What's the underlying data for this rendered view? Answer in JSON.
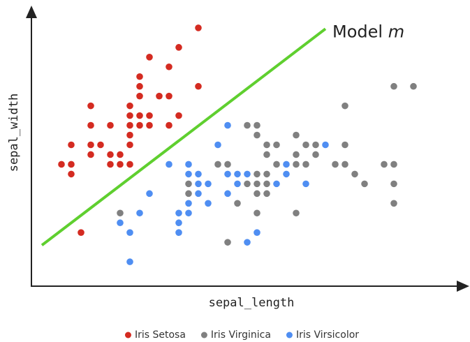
{
  "chart_data": {
    "type": "scatter",
    "x_label": "sepal_length",
    "y_label": "sepal_width",
    "xlim": [
      4.0,
      8.4
    ],
    "ylim": [
      1.75,
      4.6
    ],
    "legend": "bottom",
    "model_line": {
      "x": [
        4.1,
        7.0
      ],
      "y": [
        2.17,
        4.39
      ],
      "color": "#5fcf2f",
      "label": "Model",
      "label_var": "m"
    },
    "series": [
      {
        "name": "Iris Setosa",
        "color": "#d42b21",
        "x": [
          5.7,
          5.5,
          5.2,
          5.4,
          5.1,
          5.7,
          5.1,
          5.1,
          5.3,
          5.4,
          4.6,
          5.0,
          5.0,
          5.1,
          5.2,
          5.5,
          4.6,
          4.8,
          5.0,
          5.1,
          5.2,
          5.4,
          5.0,
          4.4,
          4.6,
          4.7,
          5.0,
          4.6,
          4.8,
          4.9,
          4.3,
          4.4,
          4.8,
          4.9,
          5.0,
          4.4,
          4.5
        ],
        "y": [
          4.4,
          4.2,
          4.1,
          4.0,
          3.9,
          3.8,
          3.8,
          3.7,
          3.7,
          3.7,
          3.6,
          3.6,
          3.5,
          3.5,
          3.5,
          3.5,
          3.4,
          3.4,
          3.4,
          3.4,
          3.4,
          3.4,
          3.3,
          3.2,
          3.2,
          3.2,
          3.2,
          3.1,
          3.1,
          3.1,
          3.0,
          3.0,
          3.0,
          3.0,
          3.0,
          2.9,
          2.3
        ]
      },
      {
        "name": "Iris Virginica",
        "color": "#808080",
        "x": [
          7.7,
          7.9,
          7.2,
          6.2,
          6.3,
          6.3,
          6.7,
          6.4,
          6.5,
          6.8,
          6.9,
          7.2,
          6.4,
          6.7,
          6.9,
          5.9,
          6.0,
          6.5,
          6.7,
          6.8,
          7.1,
          7.2,
          7.6,
          7.7,
          6.3,
          6.4,
          7.3,
          5.6,
          6.2,
          6.3,
          6.4,
          7.4,
          7.7,
          5.6,
          6.3,
          6.4,
          7.7,
          6.1,
          6.7,
          6.3,
          4.9,
          6.0
        ],
        "y": [
          3.8,
          3.8,
          3.6,
          3.4,
          3.4,
          3.3,
          3.3,
          3.2,
          3.2,
          3.2,
          3.2,
          3.2,
          3.1,
          3.1,
          3.1,
          3.0,
          3.0,
          3.0,
          3.0,
          3.0,
          3.0,
          3.0,
          3.0,
          3.0,
          2.9,
          2.9,
          2.9,
          2.8,
          2.8,
          2.8,
          2.8,
          2.8,
          2.8,
          2.7,
          2.7,
          2.7,
          2.6,
          2.6,
          2.5,
          2.5,
          2.5,
          2.2
        ]
      },
      {
        "name": "Iris Virsicolor",
        "color": "#4f8ef2",
        "x": [
          6.0,
          5.9,
          7.0,
          5.4,
          5.6,
          6.6,
          5.6,
          5.7,
          6.0,
          6.1,
          6.2,
          6.6,
          5.7,
          5.8,
          6.1,
          6.5,
          6.8,
          5.2,
          5.7,
          6.0,
          5.6,
          5.8,
          5.1,
          5.5,
          5.6,
          4.9,
          5.5,
          5.0,
          5.5,
          6.3,
          6.2,
          5.0
        ],
        "y": [
          3.4,
          3.2,
          3.2,
          3.0,
          3.0,
          3.0,
          2.9,
          2.9,
          2.9,
          2.9,
          2.9,
          2.9,
          2.8,
          2.8,
          2.8,
          2.8,
          2.8,
          2.7,
          2.7,
          2.7,
          2.6,
          2.6,
          2.5,
          2.5,
          2.5,
          2.4,
          2.4,
          2.3,
          2.3,
          2.3,
          2.2,
          2.0
        ]
      }
    ]
  }
}
